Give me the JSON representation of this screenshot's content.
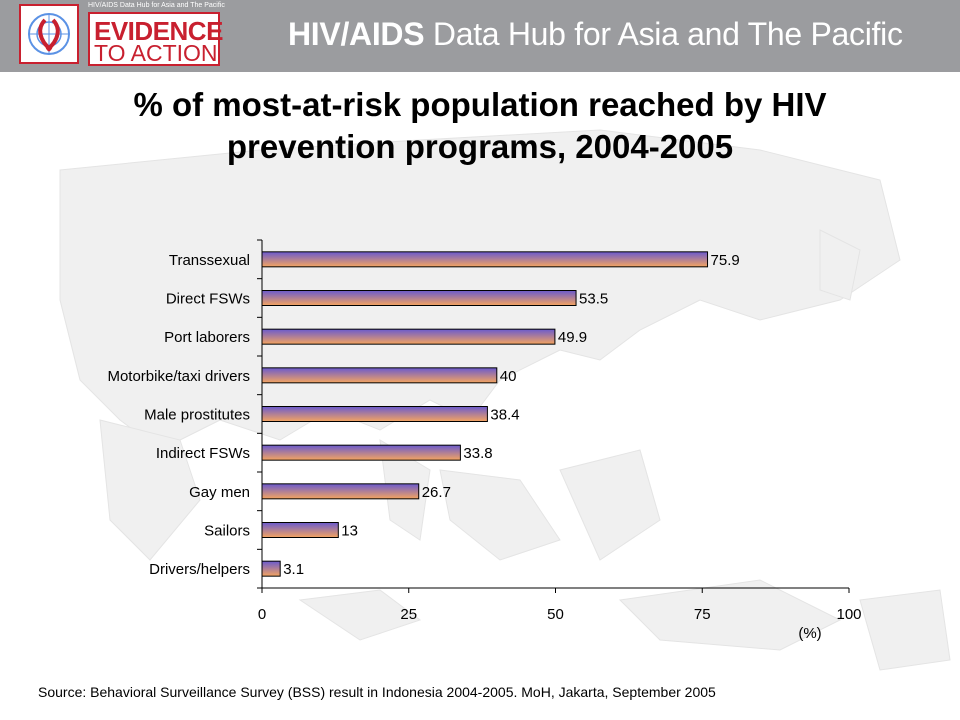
{
  "header": {
    "logo_small_lines": [
      "HIV/AIDS Data Hub for Asia and The Pacific"
    ],
    "logo_line1": "EVIDENCE",
    "logo_line2": "TO ACTION",
    "hub_title_bold": "HIV/AIDS",
    "hub_title_rest": " Data Hub for Asia and The Pacific"
  },
  "slide": {
    "title": "% of most-at-risk population reached by HIV prevention programs, 2004-2005",
    "source": "Source: Behavioral Surveillance Survey (BSS) result in Indonesia 2004-2005. MoH, Jakarta, September 2005"
  },
  "colors": {
    "header_bg": "#9b9c9f",
    "brand_red": "#c8202f",
    "bar_top": "#6a5acd",
    "bar_bottom": "#f4a460"
  },
  "chart_data": {
    "type": "bar",
    "orientation": "horizontal",
    "title": "% of most-at-risk population reached by HIV prevention programs, 2004-2005",
    "xlabel": "(%)",
    "ylabel": "",
    "categories": [
      "Transsexual",
      "Direct FSWs",
      "Port laborers",
      "Motorbike/taxi drivers",
      "Male prostitutes",
      "Indirect FSWs",
      "Gay men",
      "Sailors",
      "Drivers/helpers"
    ],
    "values": [
      75.9,
      53.5,
      49.9,
      40,
      38.4,
      33.8,
      26.7,
      13,
      3.1
    ],
    "value_labels": [
      "75.9",
      "53.5",
      "49.9",
      "40",
      "38.4",
      "33.8",
      "26.7",
      "13",
      "3.1"
    ],
    "xlim": [
      0,
      100
    ],
    "xticks": [
      0,
      25,
      50,
      75,
      100
    ],
    "grid": false,
    "legend": "none"
  }
}
